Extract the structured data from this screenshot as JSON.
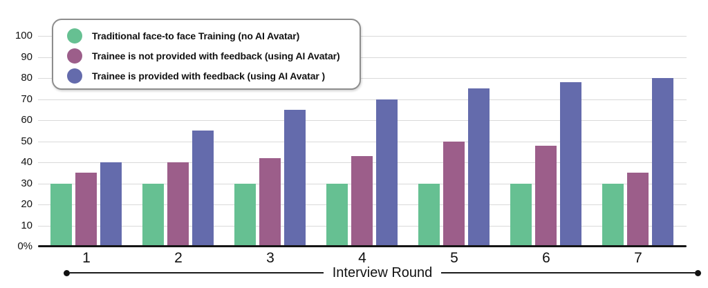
{
  "chart_data": {
    "type": "bar",
    "title": "",
    "xlabel": "Interview Round",
    "ylabel": "",
    "categories": [
      "1",
      "2",
      "3",
      "4",
      "5",
      "6",
      "7"
    ],
    "series": [
      {
        "name": "Traditional face-to face Training (no AI Avatar)",
        "color": "#66c092",
        "values": [
          30,
          30,
          30,
          30,
          30,
          30,
          30
        ]
      },
      {
        "name": "Trainee is not provided with feedback (using AI Avatar)",
        "color": "#9c5e8a",
        "values": [
          35,
          40,
          42,
          43,
          50,
          48,
          35
        ]
      },
      {
        "name": "Trainee is provided with feedback (using AI Avatar )",
        "color": "#646bac",
        "values": [
          40,
          55,
          65,
          70,
          75,
          78,
          80
        ]
      }
    ],
    "y_ticks": [
      0,
      10,
      20,
      30,
      40,
      50,
      60,
      70,
      80,
      90,
      100
    ],
    "y_tick_labels": [
      "0%",
      "10",
      "20",
      "30",
      "40",
      "50",
      "60",
      "70",
      "80",
      "90",
      "100"
    ],
    "ylim": [
      0,
      100
    ],
    "grid": true,
    "gridline_color": "#d9d9d9",
    "legend_position": "top-left"
  }
}
